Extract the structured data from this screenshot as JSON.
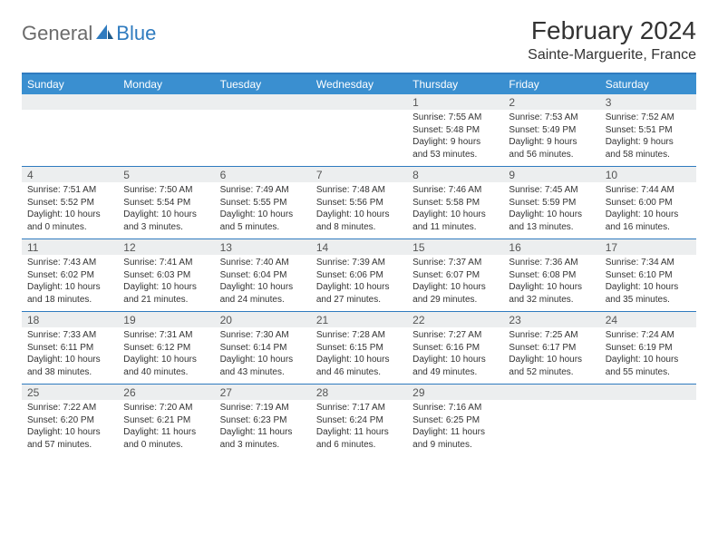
{
  "brand": {
    "general": "General",
    "blue": "Blue"
  },
  "title": "February 2024",
  "subtitle": "Sainte-Marguerite, France",
  "colors": {
    "header_bar": "#3a8fd0",
    "rule": "#2f7bbf",
    "daynum_bg": "#eceeef",
    "text": "#333333"
  },
  "weekdays": [
    "Sunday",
    "Monday",
    "Tuesday",
    "Wednesday",
    "Thursday",
    "Friday",
    "Saturday"
  ],
  "weeks": [
    [
      {
        "n": "",
        "sunrise": "",
        "sunset": "",
        "day": ""
      },
      {
        "n": "",
        "sunrise": "",
        "sunset": "",
        "day": ""
      },
      {
        "n": "",
        "sunrise": "",
        "sunset": "",
        "day": ""
      },
      {
        "n": "",
        "sunrise": "",
        "sunset": "",
        "day": ""
      },
      {
        "n": "1",
        "sunrise": "Sunrise: 7:55 AM",
        "sunset": "Sunset: 5:48 PM",
        "day": "Daylight: 9 hours and 53 minutes."
      },
      {
        "n": "2",
        "sunrise": "Sunrise: 7:53 AM",
        "sunset": "Sunset: 5:49 PM",
        "day": "Daylight: 9 hours and 56 minutes."
      },
      {
        "n": "3",
        "sunrise": "Sunrise: 7:52 AM",
        "sunset": "Sunset: 5:51 PM",
        "day": "Daylight: 9 hours and 58 minutes."
      }
    ],
    [
      {
        "n": "4",
        "sunrise": "Sunrise: 7:51 AM",
        "sunset": "Sunset: 5:52 PM",
        "day": "Daylight: 10 hours and 0 minutes."
      },
      {
        "n": "5",
        "sunrise": "Sunrise: 7:50 AM",
        "sunset": "Sunset: 5:54 PM",
        "day": "Daylight: 10 hours and 3 minutes."
      },
      {
        "n": "6",
        "sunrise": "Sunrise: 7:49 AM",
        "sunset": "Sunset: 5:55 PM",
        "day": "Daylight: 10 hours and 5 minutes."
      },
      {
        "n": "7",
        "sunrise": "Sunrise: 7:48 AM",
        "sunset": "Sunset: 5:56 PM",
        "day": "Daylight: 10 hours and 8 minutes."
      },
      {
        "n": "8",
        "sunrise": "Sunrise: 7:46 AM",
        "sunset": "Sunset: 5:58 PM",
        "day": "Daylight: 10 hours and 11 minutes."
      },
      {
        "n": "9",
        "sunrise": "Sunrise: 7:45 AM",
        "sunset": "Sunset: 5:59 PM",
        "day": "Daylight: 10 hours and 13 minutes."
      },
      {
        "n": "10",
        "sunrise": "Sunrise: 7:44 AM",
        "sunset": "Sunset: 6:00 PM",
        "day": "Daylight: 10 hours and 16 minutes."
      }
    ],
    [
      {
        "n": "11",
        "sunrise": "Sunrise: 7:43 AM",
        "sunset": "Sunset: 6:02 PM",
        "day": "Daylight: 10 hours and 18 minutes."
      },
      {
        "n": "12",
        "sunrise": "Sunrise: 7:41 AM",
        "sunset": "Sunset: 6:03 PM",
        "day": "Daylight: 10 hours and 21 minutes."
      },
      {
        "n": "13",
        "sunrise": "Sunrise: 7:40 AM",
        "sunset": "Sunset: 6:04 PM",
        "day": "Daylight: 10 hours and 24 minutes."
      },
      {
        "n": "14",
        "sunrise": "Sunrise: 7:39 AM",
        "sunset": "Sunset: 6:06 PM",
        "day": "Daylight: 10 hours and 27 minutes."
      },
      {
        "n": "15",
        "sunrise": "Sunrise: 7:37 AM",
        "sunset": "Sunset: 6:07 PM",
        "day": "Daylight: 10 hours and 29 minutes."
      },
      {
        "n": "16",
        "sunrise": "Sunrise: 7:36 AM",
        "sunset": "Sunset: 6:08 PM",
        "day": "Daylight: 10 hours and 32 minutes."
      },
      {
        "n": "17",
        "sunrise": "Sunrise: 7:34 AM",
        "sunset": "Sunset: 6:10 PM",
        "day": "Daylight: 10 hours and 35 minutes."
      }
    ],
    [
      {
        "n": "18",
        "sunrise": "Sunrise: 7:33 AM",
        "sunset": "Sunset: 6:11 PM",
        "day": "Daylight: 10 hours and 38 minutes."
      },
      {
        "n": "19",
        "sunrise": "Sunrise: 7:31 AM",
        "sunset": "Sunset: 6:12 PM",
        "day": "Daylight: 10 hours and 40 minutes."
      },
      {
        "n": "20",
        "sunrise": "Sunrise: 7:30 AM",
        "sunset": "Sunset: 6:14 PM",
        "day": "Daylight: 10 hours and 43 minutes."
      },
      {
        "n": "21",
        "sunrise": "Sunrise: 7:28 AM",
        "sunset": "Sunset: 6:15 PM",
        "day": "Daylight: 10 hours and 46 minutes."
      },
      {
        "n": "22",
        "sunrise": "Sunrise: 7:27 AM",
        "sunset": "Sunset: 6:16 PM",
        "day": "Daylight: 10 hours and 49 minutes."
      },
      {
        "n": "23",
        "sunrise": "Sunrise: 7:25 AM",
        "sunset": "Sunset: 6:17 PM",
        "day": "Daylight: 10 hours and 52 minutes."
      },
      {
        "n": "24",
        "sunrise": "Sunrise: 7:24 AM",
        "sunset": "Sunset: 6:19 PM",
        "day": "Daylight: 10 hours and 55 minutes."
      }
    ],
    [
      {
        "n": "25",
        "sunrise": "Sunrise: 7:22 AM",
        "sunset": "Sunset: 6:20 PM",
        "day": "Daylight: 10 hours and 57 minutes."
      },
      {
        "n": "26",
        "sunrise": "Sunrise: 7:20 AM",
        "sunset": "Sunset: 6:21 PM",
        "day": "Daylight: 11 hours and 0 minutes."
      },
      {
        "n": "27",
        "sunrise": "Sunrise: 7:19 AM",
        "sunset": "Sunset: 6:23 PM",
        "day": "Daylight: 11 hours and 3 minutes."
      },
      {
        "n": "28",
        "sunrise": "Sunrise: 7:17 AM",
        "sunset": "Sunset: 6:24 PM",
        "day": "Daylight: 11 hours and 6 minutes."
      },
      {
        "n": "29",
        "sunrise": "Sunrise: 7:16 AM",
        "sunset": "Sunset: 6:25 PM",
        "day": "Daylight: 11 hours and 9 minutes."
      },
      {
        "n": "",
        "sunrise": "",
        "sunset": "",
        "day": ""
      },
      {
        "n": "",
        "sunrise": "",
        "sunset": "",
        "day": ""
      }
    ]
  ]
}
